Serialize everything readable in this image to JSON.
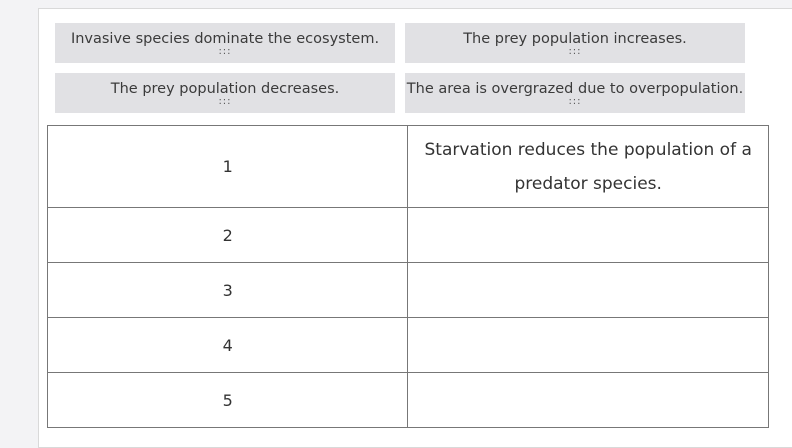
{
  "tiles": [
    {
      "label": "Invasive species dominate the ecosystem.",
      "grip": ":::"
    },
    {
      "label": "The prey population increases.",
      "grip": ":::"
    },
    {
      "label": "The prey population decreases.",
      "grip": ":::"
    },
    {
      "label": "The area is overgrazed due to overpopulation.",
      "grip": ":::"
    }
  ],
  "table": {
    "rows": [
      {
        "number": "1",
        "content": "Starvation reduces the population of a predator species."
      },
      {
        "number": "2",
        "content": ""
      },
      {
        "number": "3",
        "content": ""
      },
      {
        "number": "4",
        "content": ""
      },
      {
        "number": "5",
        "content": ""
      }
    ]
  }
}
